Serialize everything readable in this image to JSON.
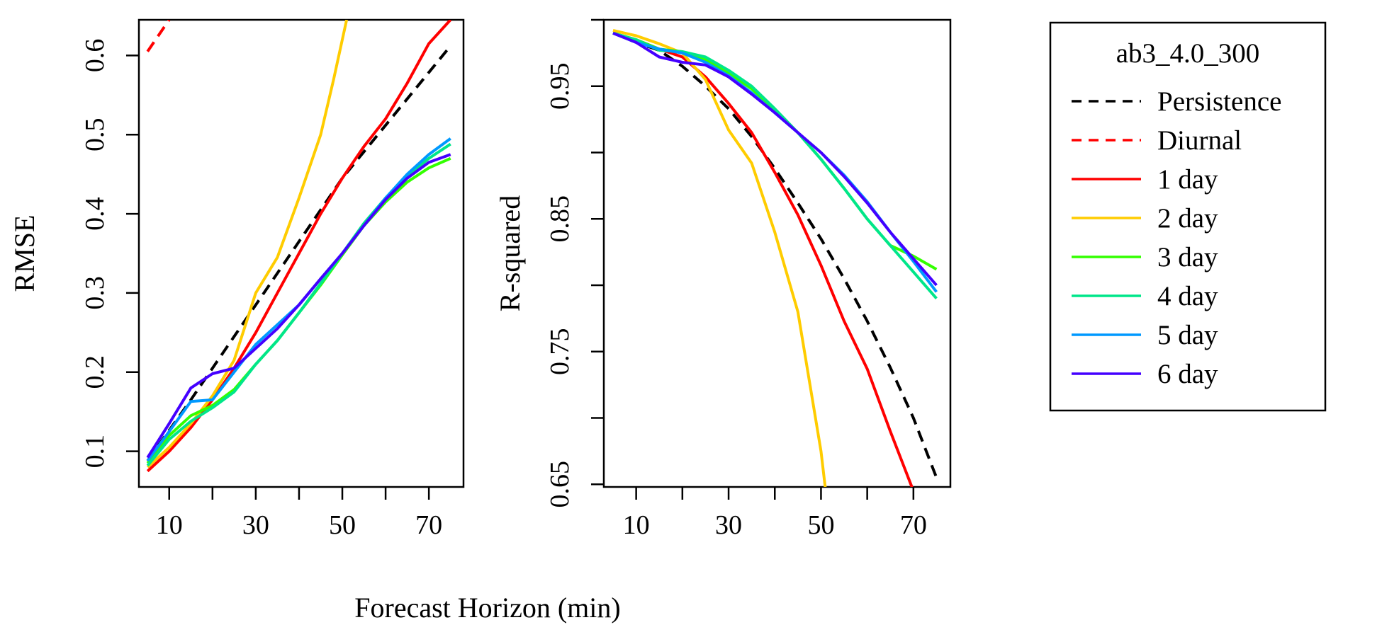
{
  "chart_data": [
    {
      "type": "line",
      "ylabel": "RMSE",
      "xlim": [
        3,
        78
      ],
      "ylim": [
        0.055,
        0.645
      ],
      "xticks": [
        "10",
        "30",
        "50",
        "70"
      ],
      "xtick_values": [
        10,
        30,
        50,
        70
      ],
      "xminor_values": [
        20,
        40,
        60
      ],
      "yticks": [
        "0.1",
        "0.2",
        "0.3",
        "0.4",
        "0.5",
        "0.6"
      ],
      "ytick_values": [
        0.1,
        0.2,
        0.3,
        0.4,
        0.5,
        0.6
      ],
      "series": [
        {
          "name": "Persistence",
          "color": "#000000",
          "dash": true,
          "x": [
            5,
            15,
            30,
            50,
            75
          ],
          "y": [
            0.088,
            0.165,
            0.285,
            0.445,
            0.612
          ]
        },
        {
          "name": "Diurnal",
          "color": "#ff0000",
          "dash": true,
          "x": [
            5,
            10
          ],
          "y": [
            0.605,
            0.645
          ]
        },
        {
          "name": "1 day",
          "color": "#ff0000",
          "dash": false,
          "x": [
            5,
            10,
            15,
            20,
            25,
            30,
            35,
            40,
            45,
            50,
            55,
            60,
            65,
            70,
            75
          ],
          "y": [
            0.075,
            0.1,
            0.13,
            0.165,
            0.205,
            0.25,
            0.3,
            0.35,
            0.4,
            0.445,
            0.485,
            0.52,
            0.565,
            0.615,
            0.645
          ]
        },
        {
          "name": "2 day",
          "color": "#ffcc00",
          "dash": false,
          "x": [
            5,
            10,
            15,
            20,
            25,
            30,
            35,
            40,
            45,
            48,
            51
          ],
          "y": [
            0.08,
            0.105,
            0.135,
            0.17,
            0.215,
            0.3,
            0.345,
            0.42,
            0.5,
            0.57,
            0.645
          ]
        },
        {
          "name": "3 day",
          "color": "#33ff00",
          "dash": false,
          "x": [
            5,
            10,
            15,
            20,
            25,
            30,
            35,
            40,
            45,
            50,
            55,
            60,
            65,
            70,
            75
          ],
          "y": [
            0.085,
            0.12,
            0.145,
            0.158,
            0.178,
            0.21,
            0.24,
            0.275,
            0.31,
            0.348,
            0.385,
            0.415,
            0.44,
            0.458,
            0.47
          ]
        },
        {
          "name": "4 day",
          "color": "#00e68a",
          "dash": false,
          "x": [
            5,
            10,
            15,
            20,
            25,
            30,
            35,
            40,
            45,
            50,
            55,
            60,
            65,
            70,
            75
          ],
          "y": [
            0.082,
            0.115,
            0.138,
            0.155,
            0.175,
            0.21,
            0.24,
            0.275,
            0.312,
            0.35,
            0.388,
            0.42,
            0.448,
            0.47,
            0.488
          ]
        },
        {
          "name": "5 day",
          "color": "#0099ff",
          "dash": false,
          "x": [
            5,
            10,
            15,
            20,
            25,
            30,
            35,
            40,
            45,
            50,
            55,
            60,
            65,
            70,
            75
          ],
          "y": [
            0.088,
            0.125,
            0.163,
            0.165,
            0.2,
            0.235,
            0.26,
            0.285,
            0.318,
            0.35,
            0.385,
            0.42,
            0.45,
            0.475,
            0.495
          ]
        },
        {
          "name": "6 day",
          "color": "#4400ff",
          "dash": false,
          "x": [
            5,
            10,
            15,
            20,
            25,
            30,
            35,
            40,
            45,
            50,
            55,
            60,
            65,
            70,
            75
          ],
          "y": [
            0.092,
            0.135,
            0.18,
            0.198,
            0.205,
            0.23,
            0.255,
            0.285,
            0.318,
            0.35,
            0.385,
            0.418,
            0.445,
            0.465,
            0.475
          ]
        }
      ]
    },
    {
      "type": "line",
      "ylabel": "R-squared",
      "xlim": [
        3,
        78
      ],
      "ylim": [
        0.648,
        1.0
      ],
      "xticks": [
        "10",
        "30",
        "50",
        "70"
      ],
      "xtick_values": [
        10,
        30,
        50,
        70
      ],
      "xminor_values": [
        20,
        40,
        60
      ],
      "yticks": [
        "0.65",
        "0.75",
        "0.85",
        "0.95"
      ],
      "ytick_values": [
        0.65,
        0.75,
        0.85,
        0.95
      ],
      "yminor_values": [
        0.7,
        0.8,
        0.9,
        1.0
      ],
      "series": [
        {
          "name": "Persistence",
          "color": "#000000",
          "dash": true,
          "x": [
            5,
            10,
            15,
            20,
            25,
            30,
            35,
            40,
            45,
            50,
            55,
            60,
            65,
            70,
            75
          ],
          "y": [
            0.99,
            0.983,
            0.977,
            0.965,
            0.95,
            0.933,
            0.912,
            0.888,
            0.862,
            0.835,
            0.805,
            0.773,
            0.738,
            0.7,
            0.655
          ]
        },
        {
          "name": "Diurnal",
          "color": "#ff0000",
          "dash": true,
          "x": [],
          "y": []
        },
        {
          "name": "1 day",
          "color": "#ff0000",
          "dash": false,
          "x": [
            5,
            10,
            15,
            20,
            25,
            30,
            35,
            40,
            45,
            50,
            55,
            60,
            65,
            70
          ],
          "y": [
            0.99,
            0.985,
            0.978,
            0.972,
            0.957,
            0.937,
            0.915,
            0.885,
            0.853,
            0.815,
            0.773,
            0.737,
            0.69,
            0.645
          ]
        },
        {
          "name": "2 day",
          "color": "#ffcc00",
          "dash": false,
          "x": [
            5,
            10,
            15,
            20,
            25,
            30,
            35,
            40,
            45,
            50,
            51
          ],
          "y": [
            0.992,
            0.988,
            0.982,
            0.975,
            0.955,
            0.917,
            0.892,
            0.84,
            0.78,
            0.675,
            0.645
          ]
        },
        {
          "name": "3 day",
          "color": "#33ff00",
          "dash": false,
          "x": [
            5,
            10,
            15,
            20,
            25,
            30,
            35,
            40,
            45,
            50,
            55,
            60,
            65,
            70,
            75
          ],
          "y": [
            0.99,
            0.985,
            0.978,
            0.976,
            0.97,
            0.96,
            0.948,
            0.932,
            0.915,
            0.895,
            0.873,
            0.85,
            0.83,
            0.822,
            0.812
          ]
        },
        {
          "name": "4 day",
          "color": "#00e68a",
          "dash": false,
          "x": [
            5,
            10,
            15,
            20,
            25,
            30,
            35,
            40,
            45,
            50,
            55,
            60,
            65,
            70,
            75
          ],
          "y": [
            0.99,
            0.985,
            0.977,
            0.976,
            0.972,
            0.962,
            0.95,
            0.933,
            0.915,
            0.895,
            0.873,
            0.85,
            0.83,
            0.81,
            0.79
          ]
        },
        {
          "name": "5 day",
          "color": "#0099ff",
          "dash": false,
          "x": [
            5,
            10,
            15,
            20,
            25,
            30,
            35,
            40,
            45,
            50,
            55,
            60,
            65,
            70,
            75
          ],
          "y": [
            0.99,
            0.983,
            0.978,
            0.975,
            0.968,
            0.958,
            0.945,
            0.93,
            0.915,
            0.9,
            0.883,
            0.863,
            0.84,
            0.818,
            0.795
          ]
        },
        {
          "name": "6 day",
          "color": "#4400ff",
          "dash": false,
          "x": [
            5,
            10,
            15,
            20,
            25,
            30,
            35,
            40,
            45,
            50,
            55,
            60,
            65,
            70,
            75
          ],
          "y": [
            0.99,
            0.983,
            0.972,
            0.968,
            0.966,
            0.957,
            0.944,
            0.93,
            0.915,
            0.9,
            0.882,
            0.862,
            0.84,
            0.82,
            0.8
          ]
        }
      ]
    }
  ],
  "xlabel": "Forecast Horizon (min)",
  "legend": {
    "title": "ab3_4.0_300",
    "items": [
      {
        "label": "Persistence",
        "color": "#000000",
        "dash": true
      },
      {
        "label": "Diurnal",
        "color": "#ff0000",
        "dash": true
      },
      {
        "label": "1 day",
        "color": "#ff0000",
        "dash": false
      },
      {
        "label": "2 day",
        "color": "#ffcc00",
        "dash": false
      },
      {
        "label": "3 day",
        "color": "#33ff00",
        "dash": false
      },
      {
        "label": "4 day",
        "color": "#00e68a",
        "dash": false
      },
      {
        "label": "5 day",
        "color": "#0099ff",
        "dash": false
      },
      {
        "label": "6 day",
        "color": "#4400ff",
        "dash": false
      }
    ]
  }
}
